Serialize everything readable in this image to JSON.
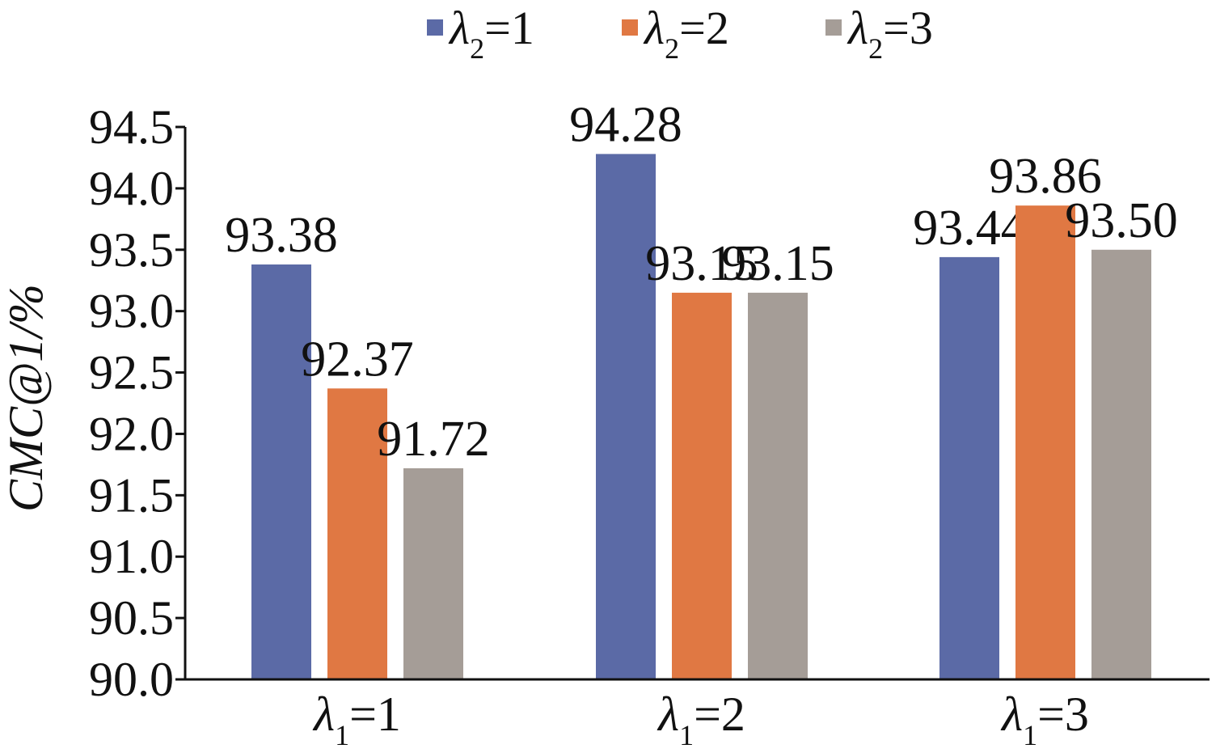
{
  "chart_data": {
    "type": "bar",
    "ylabel": "CMC@1/%",
    "ylim": [
      90.0,
      94.5
    ],
    "yticks": [
      "90.0",
      "90.5",
      "91.0",
      "91.5",
      "92.0",
      "92.5",
      "93.0",
      "93.5",
      "94.0",
      "94.5"
    ],
    "categories": [
      {
        "symbol": "λ",
        "sub": "1",
        "eq": "=1"
      },
      {
        "symbol": "λ",
        "sub": "1",
        "eq": "=2"
      },
      {
        "symbol": "λ",
        "sub": "1",
        "eq": "=3"
      }
    ],
    "series": [
      {
        "symbol": "λ",
        "sub": "2",
        "eq": "=1",
        "color": "#5b6aa6",
        "values": [
          93.38,
          94.28,
          93.44
        ],
        "labels": [
          "93.38",
          "94.28",
          "93.44"
        ]
      },
      {
        "symbol": "λ",
        "sub": "2",
        "eq": "=2",
        "color": "#e07843",
        "values": [
          92.37,
          93.15,
          93.86
        ],
        "labels": [
          "92.37",
          "93.15",
          "93.86"
        ]
      },
      {
        "symbol": "λ",
        "sub": "2",
        "eq": "=3",
        "color": "#a59d97",
        "values": [
          91.72,
          93.15,
          93.5
        ],
        "labels": [
          "91.72",
          "93.15",
          "93.50"
        ]
      }
    ],
    "legend_position": "top",
    "grid": false
  }
}
